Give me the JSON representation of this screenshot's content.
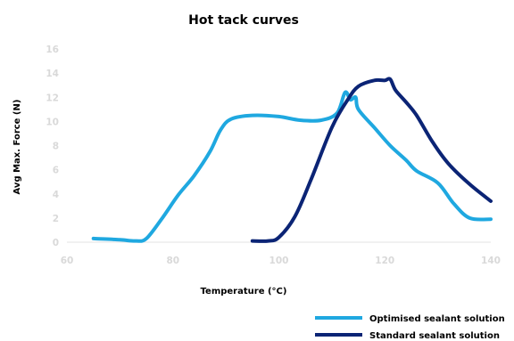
{
  "chart_data": {
    "type": "line",
    "title": "Hot tack curves",
    "xlabel": "Temperature (°C)",
    "ylabel": "Avg Max. Force (N)",
    "xlim": [
      60,
      140
    ],
    "ylim": [
      0,
      16
    ],
    "x_ticks": [
      60,
      80,
      100,
      120,
      140
    ],
    "y_ticks": [
      0,
      2,
      4,
      6,
      8,
      10,
      12,
      14,
      16
    ],
    "grid": false,
    "legend_position": "bottom-right",
    "series": [
      {
        "name": "Optimised sealant solution",
        "color": "#1fa8e0",
        "points": [
          [
            65,
            0.3
          ],
          [
            70,
            0.2
          ],
          [
            73,
            0.1
          ],
          [
            75,
            0.3
          ],
          [
            78,
            2.0
          ],
          [
            81,
            3.9
          ],
          [
            84,
            5.5
          ],
          [
            87,
            7.5
          ],
          [
            89,
            9.3
          ],
          [
            91,
            10.2
          ],
          [
            95,
            10.5
          ],
          [
            100,
            10.4
          ],
          [
            104,
            10.1
          ],
          [
            108,
            10.1
          ],
          [
            111,
            10.7
          ],
          [
            112.5,
            12.4
          ],
          [
            113.5,
            11.8
          ],
          [
            114.5,
            12.0
          ],
          [
            115,
            11.0
          ],
          [
            118,
            9.5
          ],
          [
            121,
            8.0
          ],
          [
            124,
            6.8
          ],
          [
            126,
            5.9
          ],
          [
            130,
            4.9
          ],
          [
            133,
            3.2
          ],
          [
            136,
            2.0
          ],
          [
            140,
            1.9
          ]
        ]
      },
      {
        "name": "Standard sealant solution",
        "color": "#0b2475",
        "points": [
          [
            95,
            0.1
          ],
          [
            98,
            0.1
          ],
          [
            100,
            0.4
          ],
          [
            103,
            2.1
          ],
          [
            106,
            5.1
          ],
          [
            110,
            9.5
          ],
          [
            113,
            11.8
          ],
          [
            115,
            12.9
          ],
          [
            118,
            13.4
          ],
          [
            120,
            13.4
          ],
          [
            121,
            13.5
          ],
          [
            122,
            12.6
          ],
          [
            124,
            11.6
          ],
          [
            126,
            10.5
          ],
          [
            129,
            8.3
          ],
          [
            132,
            6.5
          ],
          [
            136,
            4.8
          ],
          [
            140,
            3.4
          ]
        ]
      }
    ]
  }
}
